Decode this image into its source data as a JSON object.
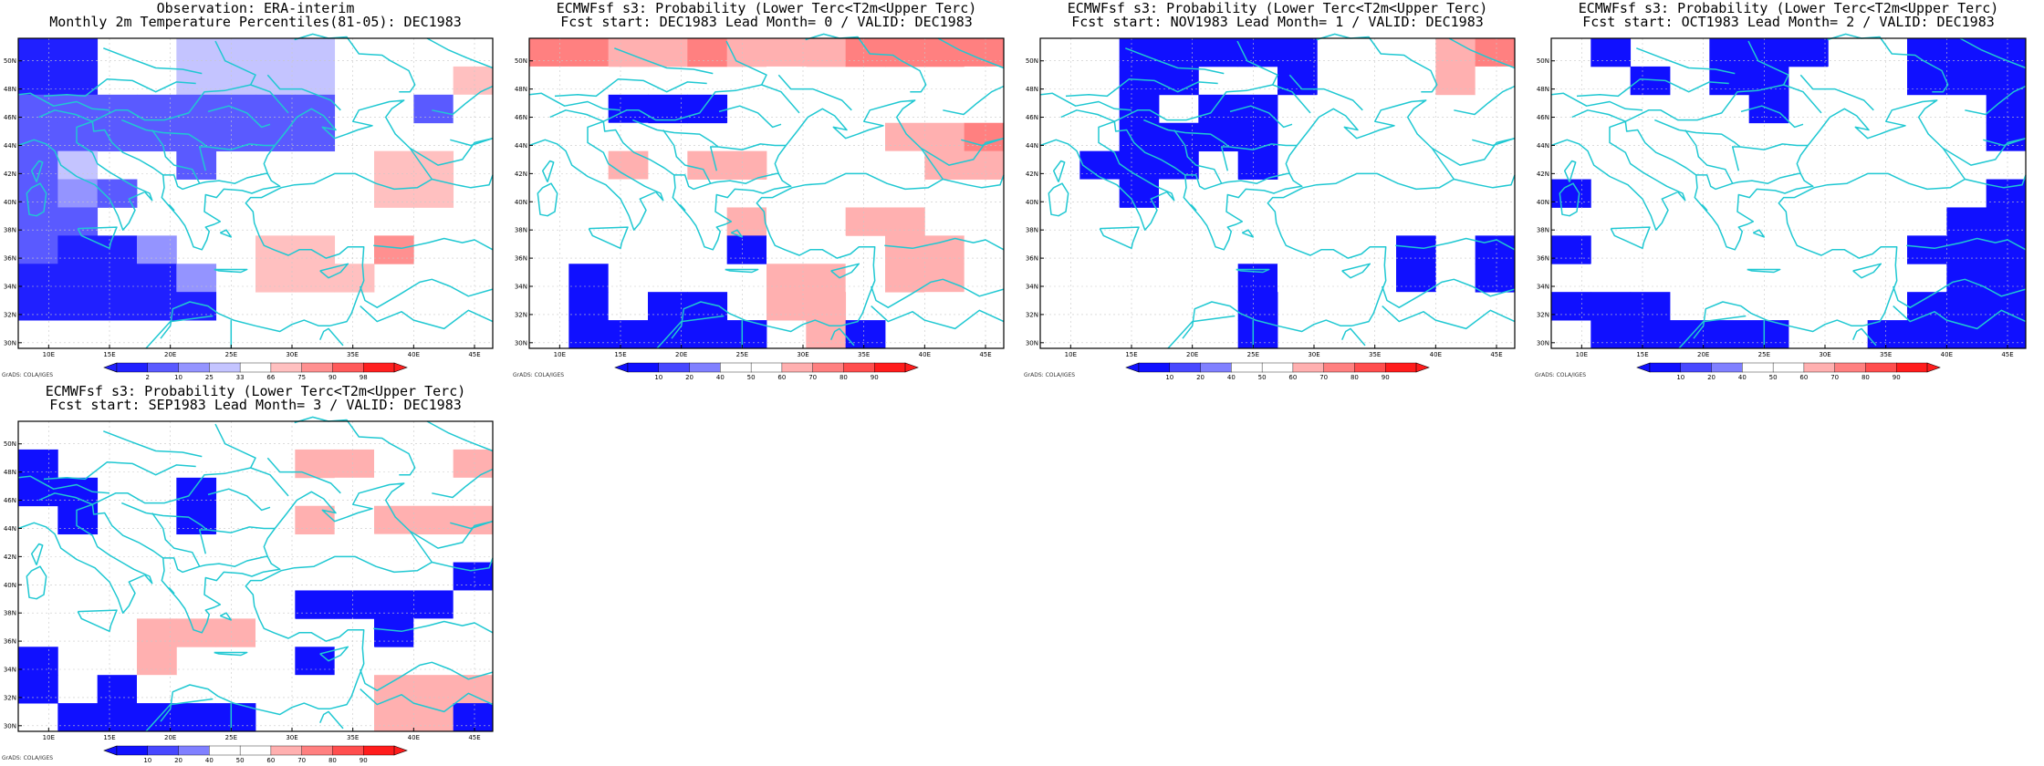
{
  "lat_labels": [
    "50N",
    "48N",
    "46N",
    "44N",
    "42N",
    "40N",
    "38N",
    "36N",
    "34N",
    "32N",
    "30N"
  ],
  "lon_labels": [
    "10E",
    "15E",
    "20E",
    "25E",
    "30E",
    "35E",
    "40E",
    "45E"
  ],
  "credit": "GrADS: COLA/IGES",
  "colors": {
    "coast": "#20c8d2",
    "grid": "#c8c8c8",
    "obs_scale": [
      "#2020ff",
      "#5a5aff",
      "#9494ff",
      "#c4c4ff",
      "#ffffff",
      "#ffc0c0",
      "#ff9090",
      "#ff5a5a",
      "#ff2020"
    ],
    "prob_scale": [
      "#1010ff",
      "#4848ff",
      "#8080ff",
      "#ffffff",
      "#ffffff",
      "#ffb0b0",
      "#ff8080",
      "#ff4e4e",
      "#ff1c1c"
    ]
  },
  "panels": [
    {
      "title1": "Observation: ERA-interim",
      "title2": "Monthly 2m Temperature Percentiles(81-05): DEC1983",
      "scale": "obs",
      "colorbar_labels": [
        "2",
        "10",
        "25",
        "33",
        "66",
        "75",
        "90",
        "98"
      ],
      "grid": [
        "110044440005",
        "110044440006",
        "222222220025",
        "222222220000",
        "240020000660",
        "232000000660",
        "220000500000",
        "211300660700",
        "111130666000",
        "111110000000",
        "000000000000"
      ]
    },
    {
      "title1": "ECMWFsf s3: Probability (Lower Terc<T2m<Upper Terc)",
      "title2": "Fcst start: DEC1983  Lead Month= 0 / VALID: DEC1983",
      "scale": "prob",
      "colorbar_labels": [
        "10",
        "20",
        "40",
        "50",
        "60",
        "70",
        "80",
        "90"
      ],
      "grid": [
        "776676667777",
        "550000500005",
        "501110550005",
        "555005555667",
        "556066005566",
        "505500505000",
        "500006506600",
        "500501550665",
        "515000665665",
        "515110660050",
        "011111061000"
      ]
    },
    {
      "title1": "ECMWFsf s3: Probability (Lower Terc<T2m<Upper Terc)",
      "title2": "Fcst start: NOV1983  Lead Month= 1 / VALID: DEC1983",
      "scale": "prob",
      "colorbar_labels": [
        "10",
        "20",
        "40",
        "50",
        "60",
        "70",
        "80",
        "90"
      ],
      "grid": [
        "001111100567",
        "001100100565",
        "001011050500",
        "001111005550",
        "011101005000",
        "051550050500",
        "550005500000",
        "550005550101",
        "555501500101",
        "555501005500",
        "000001005000"
      ]
    },
    {
      "title1": "ECMWFsf s3: Probability (Lower Terc<T2m<Upper Terc)",
      "title2": "Fcst start: OCT1983  Lead Month= 2 / VALID: DEC1983",
      "scale": "prob",
      "colorbar_labels": [
        "10",
        "20",
        "40",
        "50",
        "60",
        "70",
        "80",
        "90"
      ],
      "grid": [
        "010011100111",
        "001011050111",
        "000001000001",
        "500000500001",
        "000500000005",
        "100000055551",
        "000000000011",
        "100000500111",
        "050505000011",
        "111000000111",
        "011111001111"
      ]
    },
    {
      "title1": "ECMWFsf s3: Probability (Lower Terc<T2m<Upper Terc)",
      "title2": "Fcst start: SEP1983  Lead Month= 3 / VALID: DEC1983",
      "scale": "prob",
      "colorbar_labels": [
        "10",
        "20",
        "40",
        "50",
        "60",
        "70",
        "80",
        "90"
      ],
      "grid": [
        "000005500000",
        "100000066556",
        "110510005555",
        "010510065666",
        "000005005500",
        "000005000001",
        "550000011115",
        "055666500155",
        "105600015000",
        "101500555666",
        "011111000661"
      ]
    }
  ]
}
